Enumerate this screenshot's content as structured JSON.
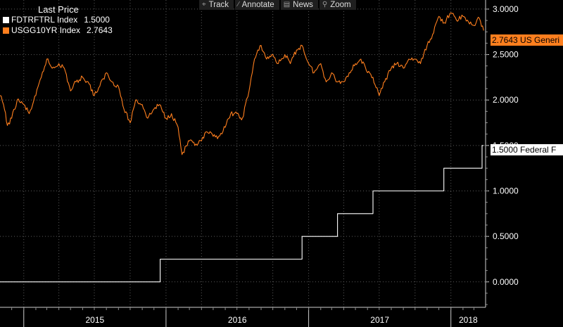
{
  "legend": {
    "title": "Last Price",
    "series": [
      {
        "name": "FDTRFTRL Index",
        "value": "1.5000",
        "color": "#ffffff"
      },
      {
        "name": "USGG10YR Index",
        "value": "2.7643",
        "color": "#ff7f1e"
      }
    ]
  },
  "toolbar": {
    "track_label": "Track",
    "annotate_label": "Annotate",
    "news_label": "News",
    "zoom_label": "Zoom"
  },
  "last_labels": {
    "yield": "2.7643 US Generi",
    "fed": "1.5000 Federal F"
  },
  "chart_data": {
    "type": "line",
    "x_unit": "date",
    "xlim": [
      "2014-11-01",
      "2018-03-31"
    ],
    "ylim": [
      -0.28,
      3.1
    ],
    "yticks": [
      "3.0000",
      "2.5000",
      "2.0000",
      "1.5000",
      "1.0000",
      "0.5000",
      "0.0000"
    ],
    "ytick_values": [
      3.0,
      2.5,
      2.0,
      1.5,
      1.0,
      0.5,
      0.0
    ],
    "xtick_labels": [
      "2015",
      "2016",
      "2017",
      "2018"
    ],
    "grid": true,
    "series": [
      {
        "name": "FDTRFTRL Index",
        "color": "#ffffff",
        "step": true,
        "points": [
          [
            "2014-11-01",
            0.0
          ],
          [
            "2015-12-17",
            0.25
          ],
          [
            "2016-12-15",
            0.5
          ],
          [
            "2017-03-16",
            0.75
          ],
          [
            "2017-06-15",
            1.0
          ],
          [
            "2017-12-14",
            1.25
          ],
          [
            "2018-03-22",
            1.5
          ],
          [
            "2018-03-26",
            1.5
          ]
        ]
      },
      {
        "name": "USGG10YR Index",
        "color": "#ff7f1e",
        "step": false,
        "points": [
          [
            "2014-11-01",
            2.05
          ],
          [
            "2014-11-10",
            1.95
          ],
          [
            "2014-11-20",
            1.72
          ],
          [
            "2014-12-01",
            1.8
          ],
          [
            "2014-12-15",
            2.0
          ],
          [
            "2015-01-01",
            1.95
          ],
          [
            "2015-01-15",
            1.85
          ],
          [
            "2015-02-01",
            2.05
          ],
          [
            "2015-02-15",
            2.25
          ],
          [
            "2015-03-01",
            2.45
          ],
          [
            "2015-03-15",
            2.35
          ],
          [
            "2015-04-01",
            2.4
          ],
          [
            "2015-04-15",
            2.35
          ],
          [
            "2015-05-01",
            2.1
          ],
          [
            "2015-05-15",
            2.2
          ],
          [
            "2015-06-01",
            2.25
          ],
          [
            "2015-06-15",
            2.2
          ],
          [
            "2015-07-01",
            2.05
          ],
          [
            "2015-07-15",
            2.15
          ],
          [
            "2015-08-01",
            2.3
          ],
          [
            "2015-08-15",
            2.2
          ],
          [
            "2015-09-01",
            2.15
          ],
          [
            "2015-09-15",
            1.9
          ],
          [
            "2015-10-01",
            1.75
          ],
          [
            "2015-10-15",
            2.0
          ],
          [
            "2015-11-01",
            1.95
          ],
          [
            "2015-11-15",
            1.8
          ],
          [
            "2015-12-01",
            1.9
          ],
          [
            "2015-12-15",
            1.95
          ],
          [
            "2016-01-01",
            1.8
          ],
          [
            "2016-01-15",
            1.85
          ],
          [
            "2016-02-01",
            1.7
          ],
          [
            "2016-02-11",
            1.4
          ],
          [
            "2016-03-01",
            1.55
          ],
          [
            "2016-03-15",
            1.5
          ],
          [
            "2016-04-01",
            1.55
          ],
          [
            "2016-04-15",
            1.65
          ],
          [
            "2016-05-01",
            1.6
          ],
          [
            "2016-05-15",
            1.6
          ],
          [
            "2016-06-01",
            1.7
          ],
          [
            "2016-06-15",
            1.85
          ],
          [
            "2016-07-01",
            1.85
          ],
          [
            "2016-07-08",
            1.8
          ],
          [
            "2016-07-15",
            1.8
          ],
          [
            "2016-08-01",
            2.1
          ],
          [
            "2016-08-15",
            2.45
          ],
          [
            "2016-09-01",
            2.6
          ],
          [
            "2016-09-15",
            2.45
          ],
          [
            "2016-10-01",
            2.5
          ],
          [
            "2016-10-15",
            2.4
          ],
          [
            "2016-11-01",
            2.5
          ],
          [
            "2016-11-15",
            2.4
          ],
          [
            "2016-12-01",
            2.55
          ],
          [
            "2016-12-15",
            2.6
          ],
          [
            "2017-01-01",
            2.4
          ],
          [
            "2017-01-15",
            2.3
          ],
          [
            "2017-02-01",
            2.4
          ],
          [
            "2017-02-15",
            2.2
          ],
          [
            "2017-03-01",
            2.3
          ],
          [
            "2017-03-15",
            2.2
          ],
          [
            "2017-04-01",
            2.2
          ],
          [
            "2017-04-15",
            2.3
          ],
          [
            "2017-05-01",
            2.4
          ],
          [
            "2017-05-15",
            2.45
          ],
          [
            "2017-06-01",
            2.3
          ],
          [
            "2017-06-15",
            2.25
          ],
          [
            "2017-07-01",
            2.05
          ],
          [
            "2017-07-15",
            2.2
          ],
          [
            "2017-08-01",
            2.35
          ],
          [
            "2017-08-15",
            2.4
          ],
          [
            "2017-09-01",
            2.35
          ],
          [
            "2017-09-15",
            2.45
          ],
          [
            "2017-10-01",
            2.45
          ],
          [
            "2017-10-15",
            2.4
          ],
          [
            "2017-11-01",
            2.6
          ],
          [
            "2017-11-15",
            2.72
          ],
          [
            "2017-12-01",
            2.92
          ],
          [
            "2017-12-15",
            2.85
          ],
          [
            "2018-01-01",
            2.96
          ],
          [
            "2018-01-15",
            2.88
          ],
          [
            "2018-02-01",
            2.92
          ],
          [
            "2018-02-15",
            2.86
          ],
          [
            "2018-03-01",
            2.82
          ],
          [
            "2018-03-15",
            2.9
          ],
          [
            "2018-03-26",
            2.7643
          ]
        ]
      }
    ]
  }
}
